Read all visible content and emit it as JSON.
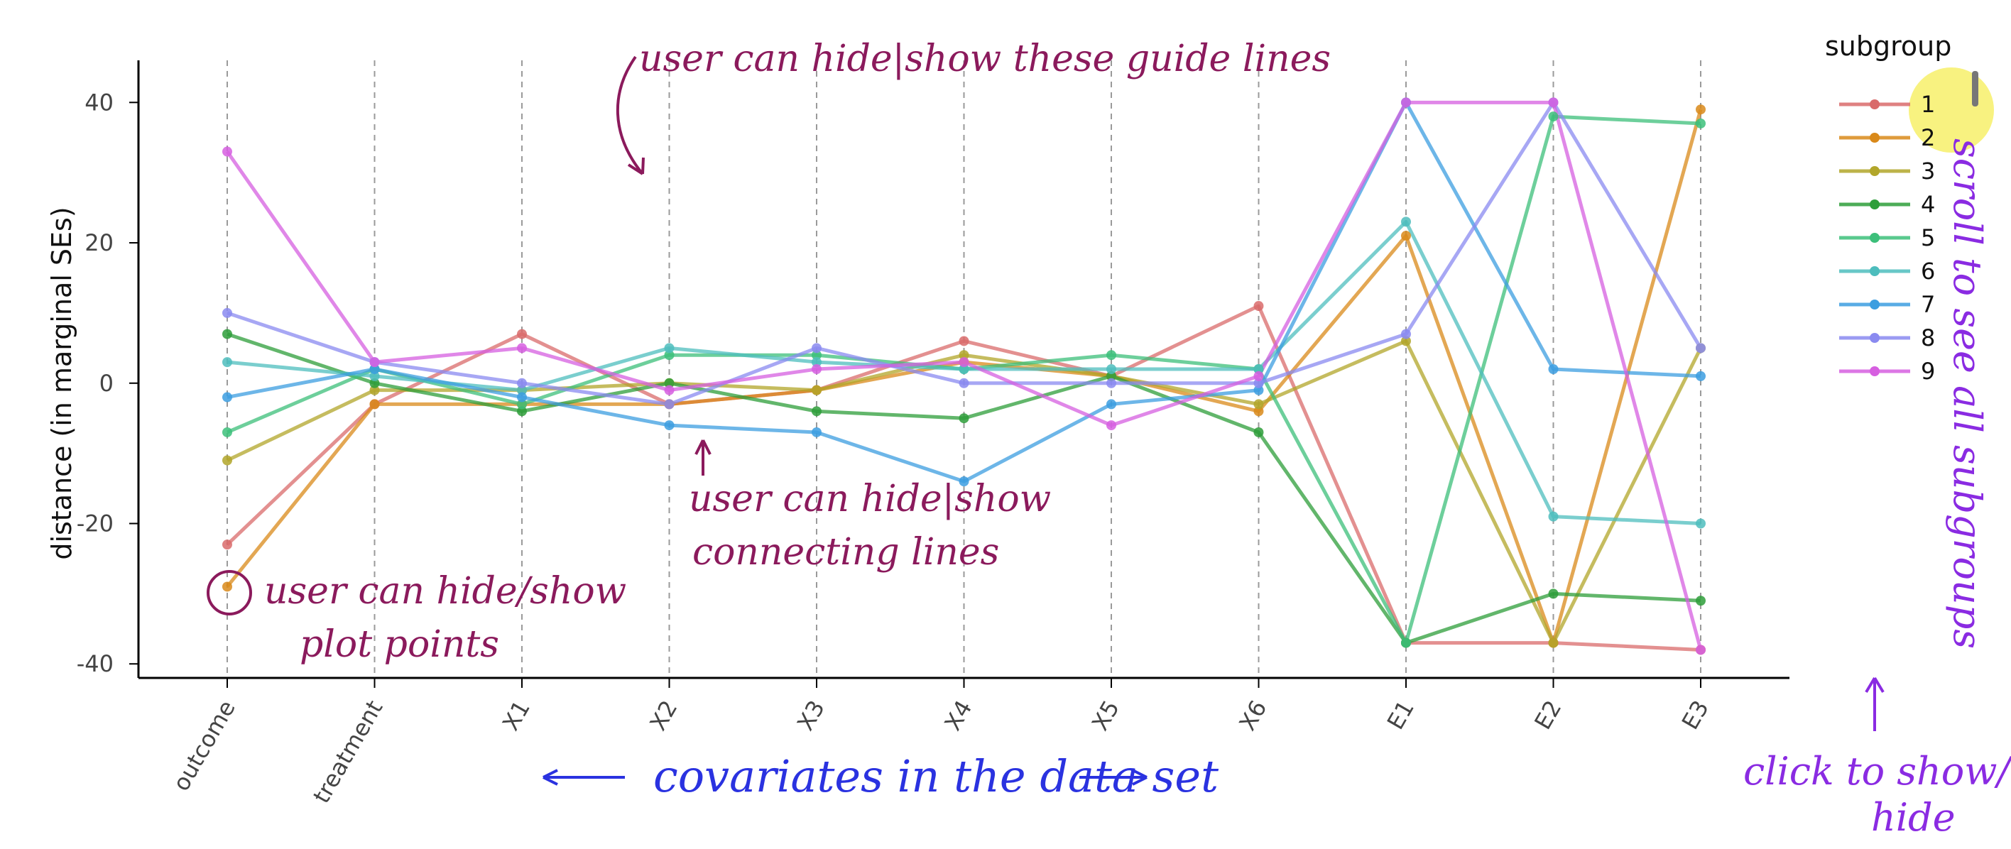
{
  "chart_data": {
    "type": "line",
    "ylabel": "distance (in marginal SEs)",
    "xlabel": "",
    "ylim": [
      -42,
      46
    ],
    "yticks": [
      -40,
      -20,
      0,
      20,
      40
    ],
    "categories": [
      "outcome",
      "treatment",
      "X1",
      "X2",
      "X3",
      "X4",
      "X5",
      "X6",
      "E1",
      "E2",
      "E3"
    ],
    "grid": "vertical dashed",
    "legend": {
      "title": "subgroup",
      "placement": "right"
    },
    "series": [
      {
        "name": "1",
        "color": "#d96b6b",
        "values": [
          -23,
          -3,
          7,
          -3,
          -1,
          6,
          1,
          11,
          -37,
          -37,
          -38
        ]
      },
      {
        "name": "2",
        "color": "#d9891a",
        "values": [
          -29,
          -3,
          -3,
          -3,
          -1,
          3,
          1,
          -4,
          21,
          -37,
          39
        ]
      },
      {
        "name": "3",
        "color": "#b2a62a",
        "values": [
          -11,
          -1,
          -1,
          0,
          -1,
          4,
          1,
          -3,
          6,
          -37,
          5
        ]
      },
      {
        "name": "4",
        "color": "#2e9e3a",
        "values": [
          7,
          0,
          -4,
          0,
          -4,
          -5,
          1,
          -7,
          -37,
          -30,
          -31
        ]
      },
      {
        "name": "5",
        "color": "#3cbf7a",
        "values": [
          -7,
          2,
          -3,
          4,
          4,
          2,
          4,
          2,
          -37,
          38,
          37
        ]
      },
      {
        "name": "6",
        "color": "#4dbdbd",
        "values": [
          3,
          1,
          -1,
          5,
          3,
          2,
          2,
          2,
          23,
          -19,
          -20
        ]
      },
      {
        "name": "7",
        "color": "#3c9ee0",
        "values": [
          -2,
          2,
          -2,
          -6,
          -7,
          -14,
          -3,
          -1,
          40,
          2,
          1
        ]
      },
      {
        "name": "8",
        "color": "#8a8af0",
        "values": [
          10,
          3,
          0,
          -3,
          5,
          0,
          0,
          0,
          7,
          40,
          5
        ]
      },
      {
        "name": "9",
        "color": "#d65fe0",
        "values": [
          33,
          3,
          5,
          -1,
          2,
          3,
          -6,
          1,
          40,
          40,
          -38
        ]
      }
    ]
  },
  "annotations": {
    "guide": "user can hide|show these guide lines",
    "connect1": "user can hide|show",
    "connect2": "connecting lines",
    "points1": "user can hide/show",
    "points2": "plot points",
    "covariates": "covariates in the data set",
    "scroll": "scroll to see all subgroups",
    "click1": "click to show/",
    "click2": "hide"
  },
  "colors": {
    "annotation": "#8b1a5c",
    "blue_note": "#2a32e0",
    "purple_note": "#8a2be2",
    "highlight": "#f7f06a"
  }
}
